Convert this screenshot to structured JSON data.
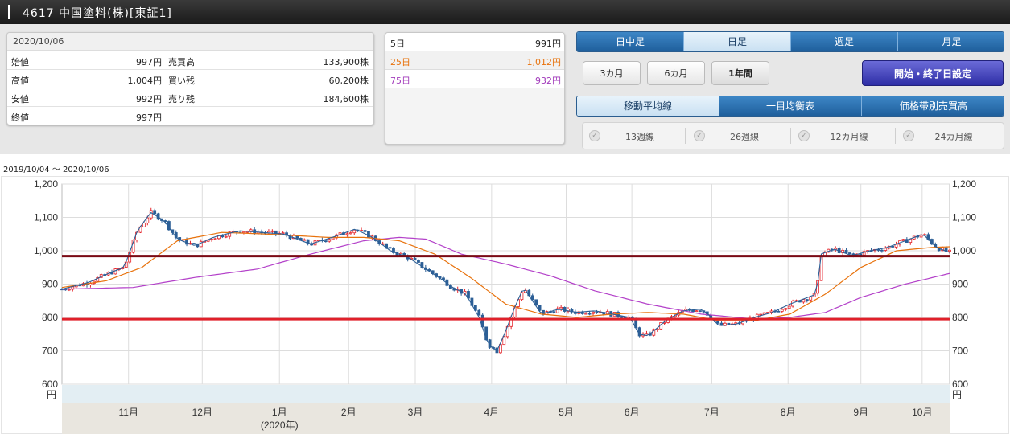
{
  "title": "4617 中国塗料(株)[東証1]",
  "quote": {
    "date": "2020/10/06",
    "rows": [
      {
        "label1": "始値",
        "value1": "997円",
        "label2": "売買高",
        "value2": "133,900株"
      },
      {
        "label1": "高値",
        "value1": "1,004円",
        "label2": "買い残",
        "value2": "60,200株"
      },
      {
        "label1": "安値",
        "value1": "992円",
        "label2": "売り残",
        "value2": "184,600株"
      },
      {
        "label1": "終値",
        "value1": "997円",
        "label2": "",
        "value2": ""
      }
    ]
  },
  "moving_averages": [
    {
      "label": "5日",
      "value": "991円",
      "color": "#222222"
    },
    {
      "label": "25日",
      "value": "1,012円",
      "color": "#e8720c"
    },
    {
      "label": "75日",
      "value": "932円",
      "color": "#a23bbb"
    }
  ],
  "interval_tabs": [
    {
      "label": "日中足",
      "active": false
    },
    {
      "label": "日足",
      "active": true
    },
    {
      "label": "週足",
      "active": false
    },
    {
      "label": "月足",
      "active": false
    }
  ],
  "period_buttons": [
    {
      "label": "3カ月",
      "active": false
    },
    {
      "label": "6カ月",
      "active": false
    },
    {
      "label": "1年間",
      "active": true
    }
  ],
  "range_button": "開始・終了日設定",
  "indicator_tabs": [
    {
      "label": "移動平均線",
      "active": true
    },
    {
      "label": "一目均衡表",
      "active": false
    },
    {
      "label": "価格帯別売買高",
      "active": false
    }
  ],
  "checkboxes": [
    {
      "label": "13週線",
      "checked": false
    },
    {
      "label": "26週線",
      "checked": false
    },
    {
      "label": "12カ月線",
      "checked": false
    },
    {
      "label": "24カ月線",
      "checked": false
    }
  ],
  "date_range": "2019/10/04 ～ 2020/10/06",
  "colors": {
    "up": "#e5252b",
    "down": "#2c5f96",
    "ma5": "#2c5f96",
    "ma25": "#e8720c",
    "ma75": "#b340c9",
    "hline_dark": "#7a0a14",
    "hline_red": "#e0202a"
  },
  "chart_data": {
    "type": "candlestick",
    "ylim": [
      600,
      1200
    ],
    "y_ticks": [
      "600",
      "700",
      "800",
      "900",
      "1,000",
      "1,100",
      "1,200"
    ],
    "y_unit": "円",
    "x_ticks": [
      "11月",
      "12月",
      "1月",
      "2月",
      "3月",
      "4月",
      "5月",
      "6月",
      "7月",
      "8月",
      "9月",
      "10月"
    ],
    "year_label": "(2020年)",
    "horizontal_lines": [
      984,
      795
    ],
    "price_path": [
      {
        "t": 0.0,
        "v": 885
      },
      {
        "t": 0.03,
        "v": 905
      },
      {
        "t": 0.055,
        "v": 935
      },
      {
        "t": 0.07,
        "v": 950
      },
      {
        "t": 0.085,
        "v": 1060
      },
      {
        "t": 0.1,
        "v": 1115
      },
      {
        "t": 0.115,
        "v": 1090
      },
      {
        "t": 0.13,
        "v": 1035
      },
      {
        "t": 0.15,
        "v": 1015
      },
      {
        "t": 0.17,
        "v": 1040
      },
      {
        "t": 0.2,
        "v": 1060
      },
      {
        "t": 0.25,
        "v": 1050
      },
      {
        "t": 0.28,
        "v": 1020
      },
      {
        "t": 0.31,
        "v": 1045
      },
      {
        "t": 0.33,
        "v": 1065
      },
      {
        "t": 0.35,
        "v": 1040
      },
      {
        "t": 0.37,
        "v": 1000
      },
      {
        "t": 0.39,
        "v": 980
      },
      {
        "t": 0.41,
        "v": 945
      },
      {
        "t": 0.43,
        "v": 910
      },
      {
        "t": 0.44,
        "v": 890
      },
      {
        "t": 0.455,
        "v": 870
      },
      {
        "t": 0.47,
        "v": 800
      },
      {
        "t": 0.48,
        "v": 720
      },
      {
        "t": 0.49,
        "v": 700
      },
      {
        "t": 0.5,
        "v": 760
      },
      {
        "t": 0.51,
        "v": 830
      },
      {
        "t": 0.52,
        "v": 890
      },
      {
        "t": 0.53,
        "v": 850
      },
      {
        "t": 0.54,
        "v": 810
      },
      {
        "t": 0.56,
        "v": 825
      },
      {
        "t": 0.58,
        "v": 815
      },
      {
        "t": 0.6,
        "v": 820
      },
      {
        "t": 0.62,
        "v": 810
      },
      {
        "t": 0.64,
        "v": 800
      },
      {
        "t": 0.65,
        "v": 750
      },
      {
        "t": 0.66,
        "v": 745
      },
      {
        "t": 0.68,
        "v": 790
      },
      {
        "t": 0.7,
        "v": 820
      },
      {
        "t": 0.72,
        "v": 825
      },
      {
        "t": 0.73,
        "v": 805
      },
      {
        "t": 0.74,
        "v": 775
      },
      {
        "t": 0.76,
        "v": 780
      },
      {
        "t": 0.78,
        "v": 800
      },
      {
        "t": 0.8,
        "v": 815
      },
      {
        "t": 0.82,
        "v": 840
      },
      {
        "t": 0.84,
        "v": 860
      },
      {
        "t": 0.85,
        "v": 870
      },
      {
        "t": 0.855,
        "v": 990
      },
      {
        "t": 0.87,
        "v": 1005
      },
      {
        "t": 0.89,
        "v": 985
      },
      {
        "t": 0.91,
        "v": 1000
      },
      {
        "t": 0.93,
        "v": 1010
      },
      {
        "t": 0.95,
        "v": 1030
      },
      {
        "t": 0.97,
        "v": 1050
      },
      {
        "t": 0.985,
        "v": 1010
      },
      {
        "t": 1.0,
        "v": 995
      }
    ],
    "ma25_path": [
      {
        "t": 0.0,
        "v": 890
      },
      {
        "t": 0.05,
        "v": 910
      },
      {
        "t": 0.09,
        "v": 950
      },
      {
        "t": 0.13,
        "v": 1030
      },
      {
        "t": 0.18,
        "v": 1055
      },
      {
        "t": 0.23,
        "v": 1050
      },
      {
        "t": 0.3,
        "v": 1040
      },
      {
        "t": 0.34,
        "v": 1040
      },
      {
        "t": 0.38,
        "v": 1030
      },
      {
        "t": 0.42,
        "v": 990
      },
      {
        "t": 0.46,
        "v": 920
      },
      {
        "t": 0.5,
        "v": 840
      },
      {
        "t": 0.54,
        "v": 810
      },
      {
        "t": 0.58,
        "v": 800
      },
      {
        "t": 0.62,
        "v": 810
      },
      {
        "t": 0.66,
        "v": 815
      },
      {
        "t": 0.7,
        "v": 810
      },
      {
        "t": 0.74,
        "v": 790
      },
      {
        "t": 0.78,
        "v": 790
      },
      {
        "t": 0.82,
        "v": 810
      },
      {
        "t": 0.86,
        "v": 870
      },
      {
        "t": 0.9,
        "v": 950
      },
      {
        "t": 0.94,
        "v": 1000
      },
      {
        "t": 0.98,
        "v": 1010
      },
      {
        "t": 1.0,
        "v": 1012
      }
    ],
    "ma75_path": [
      {
        "t": 0.0,
        "v": 885
      },
      {
        "t": 0.08,
        "v": 890
      },
      {
        "t": 0.15,
        "v": 920
      },
      {
        "t": 0.22,
        "v": 945
      },
      {
        "t": 0.28,
        "v": 990
      },
      {
        "t": 0.34,
        "v": 1030
      },
      {
        "t": 0.38,
        "v": 1040
      },
      {
        "t": 0.41,
        "v": 1035
      },
      {
        "t": 0.45,
        "v": 990
      },
      {
        "t": 0.5,
        "v": 960
      },
      {
        "t": 0.55,
        "v": 925
      },
      {
        "t": 0.6,
        "v": 880
      },
      {
        "t": 0.66,
        "v": 840
      },
      {
        "t": 0.72,
        "v": 810
      },
      {
        "t": 0.78,
        "v": 795
      },
      {
        "t": 0.82,
        "v": 800
      },
      {
        "t": 0.86,
        "v": 815
      },
      {
        "t": 0.9,
        "v": 860
      },
      {
        "t": 0.95,
        "v": 900
      },
      {
        "t": 1.0,
        "v": 932
      }
    ]
  }
}
